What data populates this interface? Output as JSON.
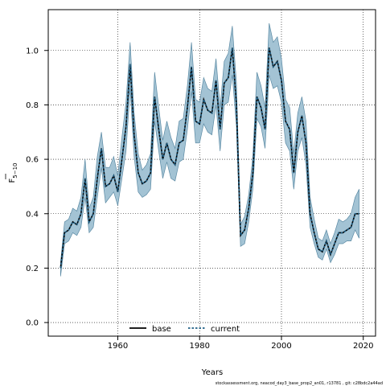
{
  "chart_data": {
    "type": "line",
    "xlabel": "Years",
    "ylabel_main": "F",
    "ylabel_sub": "5−10",
    "xlim": [
      1943,
      2023
    ],
    "ylim": [
      -0.05,
      1.15
    ],
    "xticks": [
      1960,
      1980,
      2000,
      2020
    ],
    "yticks": [
      0.0,
      0.2,
      0.4,
      0.6,
      0.8,
      1.0
    ],
    "ytick_labels": [
      "0.0",
      "0.2",
      "0.4",
      "0.6",
      "0.8",
      "1.0"
    ],
    "grid": true,
    "legend": {
      "placement": "bottom-center",
      "entries": [
        "base",
        "current"
      ]
    },
    "footer": "stockassessment.org, neacod_day3_base_prop2_an01, r13781 , git: c28bdc2a44ad",
    "colors": {
      "band": "#a3c3d4",
      "band_edge": "#5b8aa4",
      "base": "#000000",
      "current": "#1f5f85"
    },
    "x": [
      1946,
      1947,
      1948,
      1949,
      1950,
      1951,
      1952,
      1953,
      1954,
      1955,
      1956,
      1957,
      1958,
      1959,
      1960,
      1961,
      1962,
      1963,
      1964,
      1965,
      1966,
      1967,
      1968,
      1969,
      1970,
      1971,
      1972,
      1973,
      1974,
      1975,
      1976,
      1977,
      1978,
      1979,
      1980,
      1981,
      1982,
      1983,
      1984,
      1985,
      1986,
      1987,
      1988,
      1989,
      1990,
      1991,
      1992,
      1993,
      1994,
      1995,
      1996,
      1997,
      1998,
      1999,
      2000,
      2001,
      2002,
      2003,
      2004,
      2005,
      2006,
      2007,
      2008,
      2009,
      2010,
      2011,
      2012,
      2013,
      2014,
      2015,
      2016,
      2017,
      2018,
      2019
    ],
    "series": [
      {
        "name": "base",
        "values": [
          0.2,
          0.33,
          0.34,
          0.37,
          0.36,
          0.4,
          0.53,
          0.37,
          0.4,
          0.53,
          0.64,
          0.5,
          0.51,
          0.54,
          0.48,
          0.6,
          0.72,
          0.95,
          0.69,
          0.55,
          0.51,
          0.52,
          0.55,
          0.83,
          0.71,
          0.6,
          0.66,
          0.6,
          0.58,
          0.66,
          0.67,
          0.79,
          0.94,
          0.74,
          0.73,
          0.82,
          0.78,
          0.77,
          0.89,
          0.71,
          0.88,
          0.9,
          1.01,
          0.8,
          0.32,
          0.34,
          0.42,
          0.55,
          0.83,
          0.79,
          0.71,
          1.01,
          0.94,
          0.96,
          0.89,
          0.74,
          0.71,
          0.55,
          0.7,
          0.76,
          0.66,
          0.4,
          0.33,
          0.27,
          0.26,
          0.3,
          0.25,
          0.29,
          0.33,
          0.33,
          0.34,
          0.35,
          0.4,
          0.4
        ]
      },
      {
        "name": "current",
        "values": [
          0.2,
          0.33,
          0.34,
          0.37,
          0.36,
          0.4,
          0.53,
          0.37,
          0.4,
          0.53,
          0.64,
          0.5,
          0.51,
          0.54,
          0.48,
          0.6,
          0.72,
          0.95,
          0.69,
          0.55,
          0.51,
          0.52,
          0.55,
          0.83,
          0.71,
          0.6,
          0.66,
          0.6,
          0.58,
          0.66,
          0.67,
          0.79,
          0.94,
          0.74,
          0.73,
          0.82,
          0.78,
          0.77,
          0.89,
          0.71,
          0.88,
          0.9,
          1.01,
          0.8,
          0.32,
          0.34,
          0.42,
          0.55,
          0.83,
          0.79,
          0.71,
          1.01,
          0.94,
          0.96,
          0.89,
          0.74,
          0.71,
          0.55,
          0.7,
          0.76,
          0.66,
          0.4,
          0.33,
          0.27,
          0.26,
          0.3,
          0.25,
          0.29,
          0.33,
          0.33,
          0.34,
          0.35,
          0.4,
          0.4
        ]
      }
    ],
    "band_lower": [
      0.17,
      0.29,
      0.3,
      0.33,
      0.32,
      0.35,
      0.46,
      0.33,
      0.35,
      0.46,
      0.57,
      0.44,
      0.46,
      0.48,
      0.43,
      0.53,
      0.63,
      0.86,
      0.61,
      0.48,
      0.46,
      0.47,
      0.49,
      0.74,
      0.63,
      0.53,
      0.59,
      0.53,
      0.52,
      0.59,
      0.6,
      0.71,
      0.85,
      0.66,
      0.66,
      0.73,
      0.7,
      0.69,
      0.8,
      0.63,
      0.8,
      0.81,
      0.91,
      0.72,
      0.28,
      0.29,
      0.37,
      0.49,
      0.75,
      0.72,
      0.64,
      0.91,
      0.86,
      0.87,
      0.81,
      0.66,
      0.63,
      0.49,
      0.63,
      0.68,
      0.58,
      0.35,
      0.29,
      0.24,
      0.23,
      0.27,
      0.22,
      0.25,
      0.29,
      0.29,
      0.3,
      0.3,
      0.34,
      0.31
    ],
    "band_upper": [
      0.22,
      0.37,
      0.38,
      0.42,
      0.41,
      0.46,
      0.6,
      0.42,
      0.46,
      0.61,
      0.7,
      0.57,
      0.57,
      0.61,
      0.54,
      0.68,
      0.81,
      1.03,
      0.77,
      0.62,
      0.56,
      0.58,
      0.62,
      0.92,
      0.79,
      0.67,
      0.74,
      0.68,
      0.64,
      0.74,
      0.75,
      0.87,
      1.03,
      0.82,
      0.81,
      0.9,
      0.86,
      0.85,
      0.97,
      0.79,
      0.96,
      0.99,
      1.09,
      0.88,
      0.36,
      0.39,
      0.47,
      0.61,
      0.92,
      0.87,
      0.79,
      1.1,
      1.03,
      1.05,
      0.97,
      0.82,
      0.79,
      0.62,
      0.77,
      0.83,
      0.74,
      0.46,
      0.38,
      0.31,
      0.3,
      0.34,
      0.29,
      0.33,
      0.38,
      0.37,
      0.38,
      0.4,
      0.46,
      0.49
    ]
  }
}
